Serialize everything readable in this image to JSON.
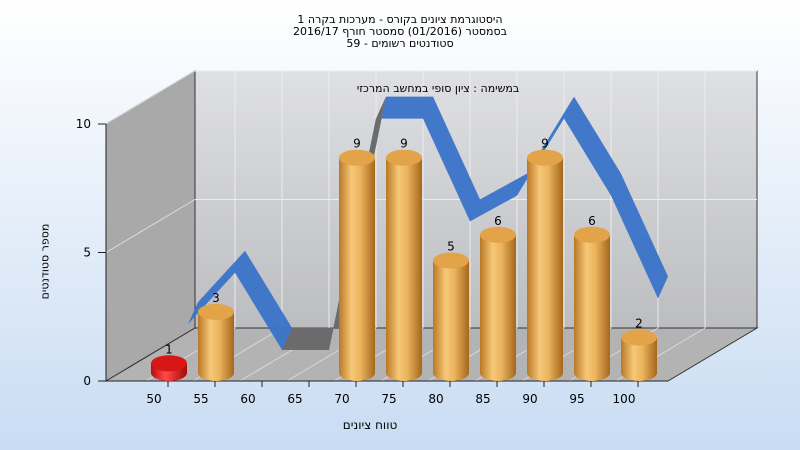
{
  "title_lines": [
    "היסטוגרמת ציונים בקורס - מערכות בקרה 1",
    "בסמסטר  (01/2016)  סמסטר חורף  2016/17",
    "סטודנטים רשומים - 59"
  ],
  "colors": {
    "bar": "#e3a449",
    "bar_highlight": "#e81a1a",
    "ribbon_front": "#3a73c8",
    "ribbon_back": "#6b6b6b",
    "wall": "#a8a8a8",
    "floor": "#b0b0b0"
  },
  "chart_data": {
    "type": "bar",
    "title": "במשימה : ציון סופי במחשב המרכזי",
    "xlabel": "טווח ציונים",
    "ylabel": "מספר סטודנטים",
    "ylim": [
      0,
      10
    ],
    "yticks": [
      0,
      5,
      10
    ],
    "categories": [
      "50",
      "55",
      "60",
      "65",
      "70",
      "75",
      "80",
      "85",
      "90",
      "95",
      "100"
    ],
    "values": [
      1,
      3,
      0,
      0,
      9,
      9,
      5,
      6,
      9,
      6,
      2
    ],
    "highlight_category": "50",
    "grid": true,
    "style": "3d-cylinder-with-ribbon"
  }
}
